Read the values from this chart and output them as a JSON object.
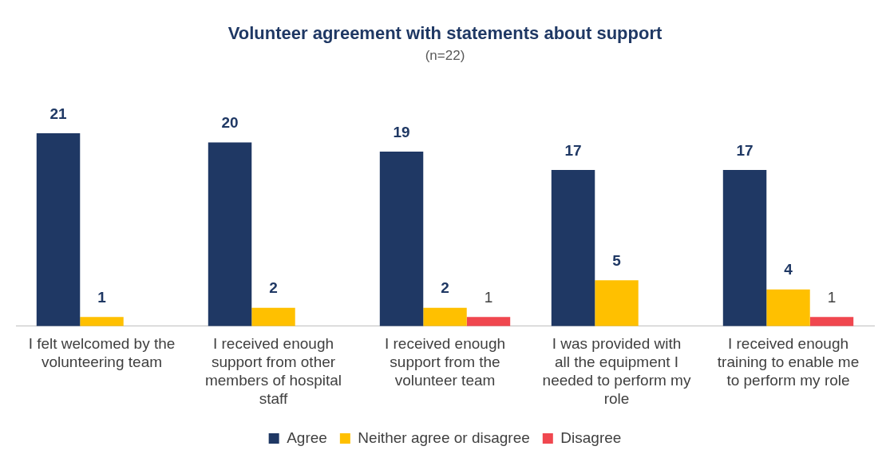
{
  "chart_data": {
    "type": "bar",
    "title": "Volunteer agreement with statements about support",
    "subtitle": "(n=22)",
    "categories": [
      "I felt welcomed by the volunteering team",
      "I received enough support from other members of hospital staff",
      "I received enough support from the volunteer team",
      "I was provided with all the equipment I needed to perform my role",
      "I received enough training to enable me to perform my role"
    ],
    "series": [
      {
        "name": "Agree",
        "color": "#1f3864",
        "values": [
          21,
          20,
          19,
          17,
          17
        ]
      },
      {
        "name": "Neither agree or disagree",
        "color": "#ffc000",
        "values": [
          1,
          2,
          2,
          5,
          4
        ]
      },
      {
        "name": "Disagree",
        "color": "#f0474f",
        "values": [
          null,
          null,
          1,
          null,
          1
        ]
      }
    ],
    "data_labels": true,
    "grid": false,
    "legend": "bottom"
  }
}
